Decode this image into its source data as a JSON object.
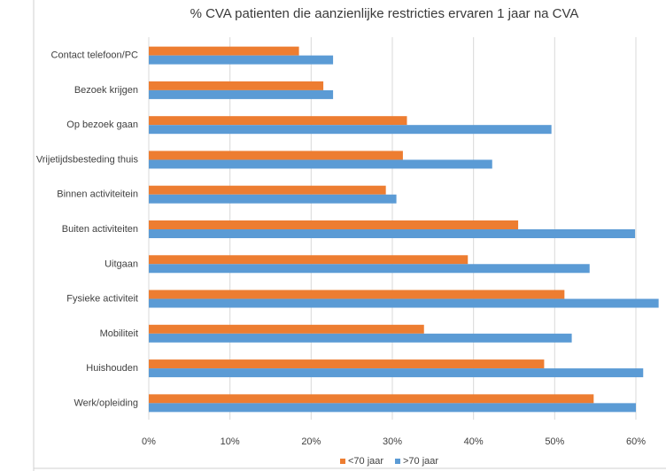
{
  "chart_data": {
    "type": "bar",
    "orientation": "horizontal",
    "title": "% CVA patienten die aanzienlijke restricties ervaren 1 jaar na CVA",
    "categories": [
      "Contact telefoon/PC",
      "Bezoek krijgen",
      "Op bezoek gaan",
      "Vrijetijdsbesteding thuis",
      "Binnen activiteitein",
      "Buiten activiteiten",
      "Uitgaan",
      "Fysieke activiteit",
      "Mobiliteit",
      "Huishouden",
      "Werk/opleiding"
    ],
    "series": [
      {
        "name": "<70 jaar",
        "color": "#ED7D31",
        "values": [
          18.5,
          21.5,
          31.8,
          31.3,
          29.2,
          45.5,
          39.3,
          51.2,
          33.9,
          48.7,
          54.8
        ]
      },
      {
        "name": ">70 jaar",
        "color": "#5B9BD5",
        "values": [
          22.7,
          22.7,
          49.6,
          42.3,
          30.5,
          59.9,
          54.3,
          62.8,
          52.1,
          60.9,
          60.0
        ]
      }
    ],
    "xlim": [
      0,
      60
    ],
    "xticks": [
      "0%",
      "10%",
      "20%",
      "30%",
      "40%",
      "50%",
      "60%"
    ],
    "xlabel": "",
    "ylabel": "",
    "legend_position": "bottom",
    "grid": true
  }
}
